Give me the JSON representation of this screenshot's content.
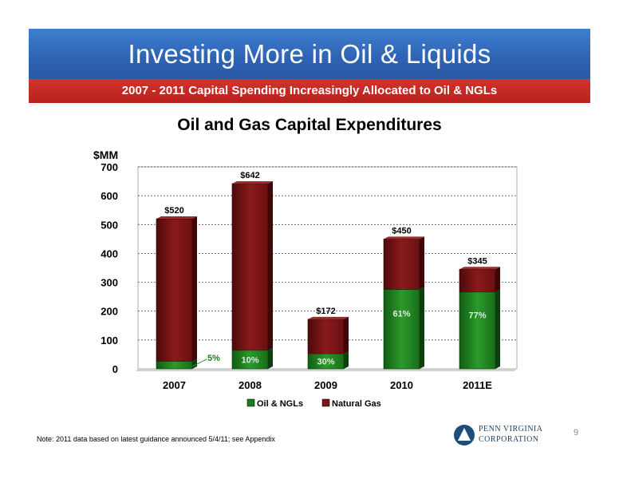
{
  "slide": {
    "title": "Investing More in Oil & Liquids",
    "subtitle": "2007 - 2011 Capital Spending Increasingly Allocated to Oil & NGLs",
    "footnote": "Note: 2011 data based on latest guidance announced 5/4/11; see Appendix",
    "page_number": "9",
    "logo_line1": "PENN VIRGINIA",
    "logo_line2": "CORPORATION",
    "colors": {
      "banner_blue": "#2e63b3",
      "banner_red": "#c32721"
    }
  },
  "chart_data": {
    "type": "bar",
    "stacked": true,
    "title": "Oil and Gas Capital Expenditures",
    "ylabel": "$MM",
    "xlabel": "",
    "ylim": [
      0,
      700
    ],
    "yticks": [
      0,
      100,
      200,
      300,
      400,
      500,
      600,
      700
    ],
    "grid": true,
    "legend_position": "bottom",
    "categories": [
      "2007",
      "2008",
      "2009",
      "2010",
      "2011E"
    ],
    "series": [
      {
        "name": "Oil & NGLs",
        "color": "#1f7a1f",
        "values": [
          26,
          64,
          52,
          275,
          266
        ]
      },
      {
        "name": "Natural Gas",
        "color": "#7f1416",
        "values": [
          494,
          578,
          120,
          175,
          79
        ]
      }
    ],
    "totals": [
      "$520",
      "$642",
      "$172",
      "$450",
      "$345"
    ],
    "oil_share_labels": [
      "5%",
      "10%",
      "30%",
      "61%",
      "77%"
    ]
  }
}
